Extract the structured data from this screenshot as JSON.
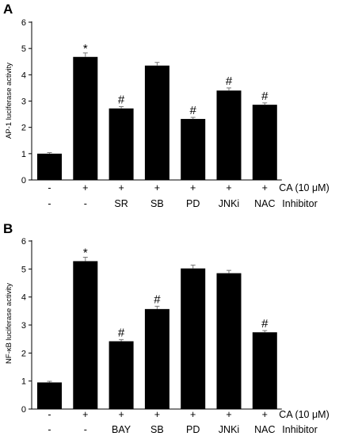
{
  "chart_data": [
    {
      "type": "bar",
      "panel": "A",
      "ylabel": "AP-1 luciferase activity",
      "ylim": [
        0,
        6
      ],
      "yticks": [
        0,
        1,
        2,
        3,
        4,
        5,
        6
      ],
      "values": [
        1.0,
        4.68,
        2.72,
        4.35,
        2.32,
        3.4,
        2.86
      ],
      "errors": [
        0.04,
        0.15,
        0.07,
        0.12,
        0.06,
        0.1,
        0.07
      ],
      "annotations": [
        "",
        "*",
        "#",
        "",
        "#",
        "#",
        "#"
      ],
      "row1": [
        "-",
        "+",
        "+",
        "+",
        "+",
        "+",
        "+"
      ],
      "row2": [
        "-",
        "-",
        "SR",
        "SB",
        "PD",
        "JNKi",
        "NAC"
      ],
      "row1_label": "CA (10 μM)",
      "row2_label": "Inhibitor",
      "bar_color": "#000000",
      "grid": false
    },
    {
      "type": "bar",
      "panel": "B",
      "ylabel": "NF-κB luciferase activity",
      "ylim": [
        0,
        6
      ],
      "yticks": [
        0,
        1,
        2,
        3,
        4,
        5,
        6
      ],
      "values": [
        0.95,
        5.28,
        2.42,
        3.57,
        5.02,
        4.85,
        2.74
      ],
      "errors": [
        0.04,
        0.14,
        0.06,
        0.1,
        0.12,
        0.1,
        0.06
      ],
      "annotations": [
        "",
        "*",
        "#",
        "#",
        "",
        "",
        "#"
      ],
      "row1": [
        "-",
        "+",
        "+",
        "+",
        "+",
        "+",
        "+"
      ],
      "row2": [
        "-",
        "-",
        "BAY",
        "SB",
        "PD",
        "JNKi",
        "NAC"
      ],
      "row1_label": "CA (10 μM)",
      "row2_label": "Inhibitor",
      "bar_color": "#000000",
      "grid": false
    }
  ]
}
